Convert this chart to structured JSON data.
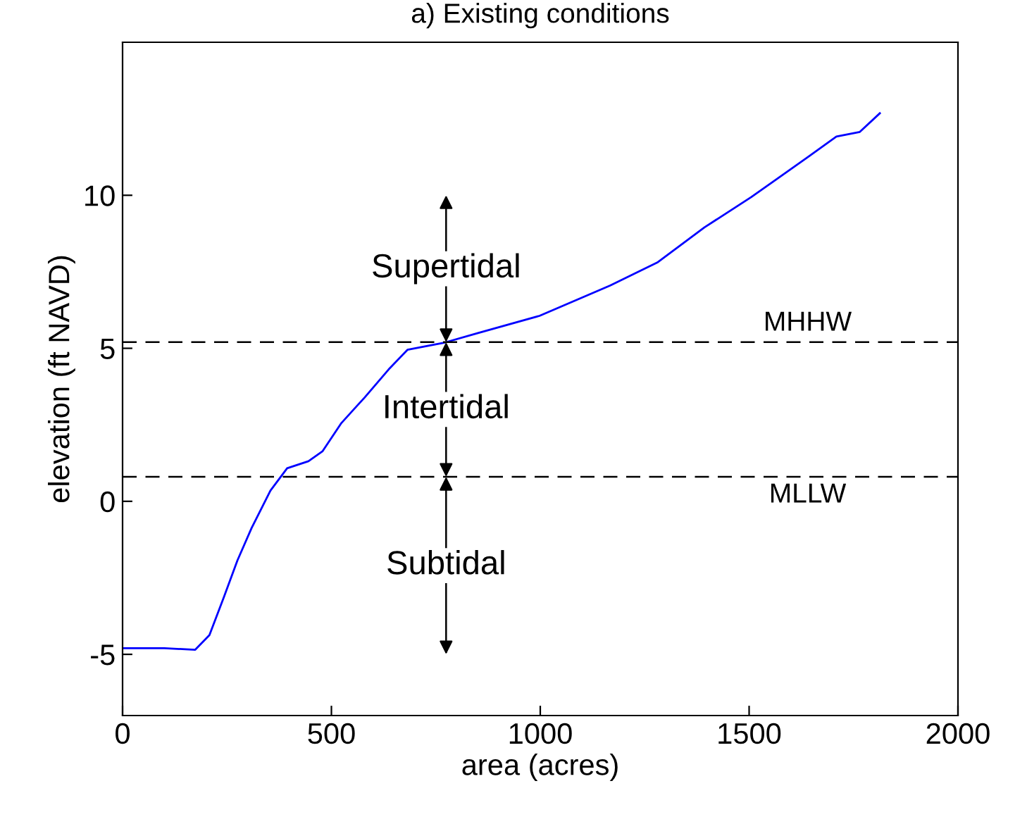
{
  "chart_data": {
    "type": "line",
    "title": "a) Existing conditions",
    "xlabel": "area (acres)",
    "ylabel": "elevation (ft NAVD)",
    "x": [
      0,
      100,
      174,
      208,
      242,
      275,
      309,
      354,
      394,
      445,
      479,
      524,
      580,
      637,
      682,
      772,
      851,
      998,
      1167,
      1280,
      1393,
      1505,
      1641,
      1709,
      1765,
      1813
    ],
    "series": [
      {
        "color": "#0000ff",
        "values": [
          -4.8,
          -4.8,
          -4.85,
          -4.37,
          -3.15,
          -1.93,
          -0.87,
          0.35,
          1.08,
          1.31,
          1.64,
          2.56,
          3.4,
          4.31,
          4.95,
          5.19,
          5.5,
          6.06,
          7.05,
          7.8,
          8.95,
          9.94,
          11.25,
          11.92,
          12.07,
          12.68
        ]
      }
    ],
    "xlim": [
      0,
      2000
    ],
    "ylim": [
      -7,
      15
    ],
    "xticks": [
      0,
      500,
      1000,
      1500,
      2000
    ],
    "yticks": [
      -5,
      0,
      5,
      10
    ],
    "ref_lines": [
      {
        "axis": "y",
        "value": 5.2,
        "label": "MHHW",
        "line_style": "dashed",
        "color": "#000000"
      },
      {
        "axis": "y",
        "value": 0.8,
        "label": "MLLW",
        "line_style": "dashed",
        "color": "#000000"
      }
    ],
    "annotations": [
      "Supertidal",
      "Intertidal",
      "Subtidal"
    ],
    "grid": false
  }
}
